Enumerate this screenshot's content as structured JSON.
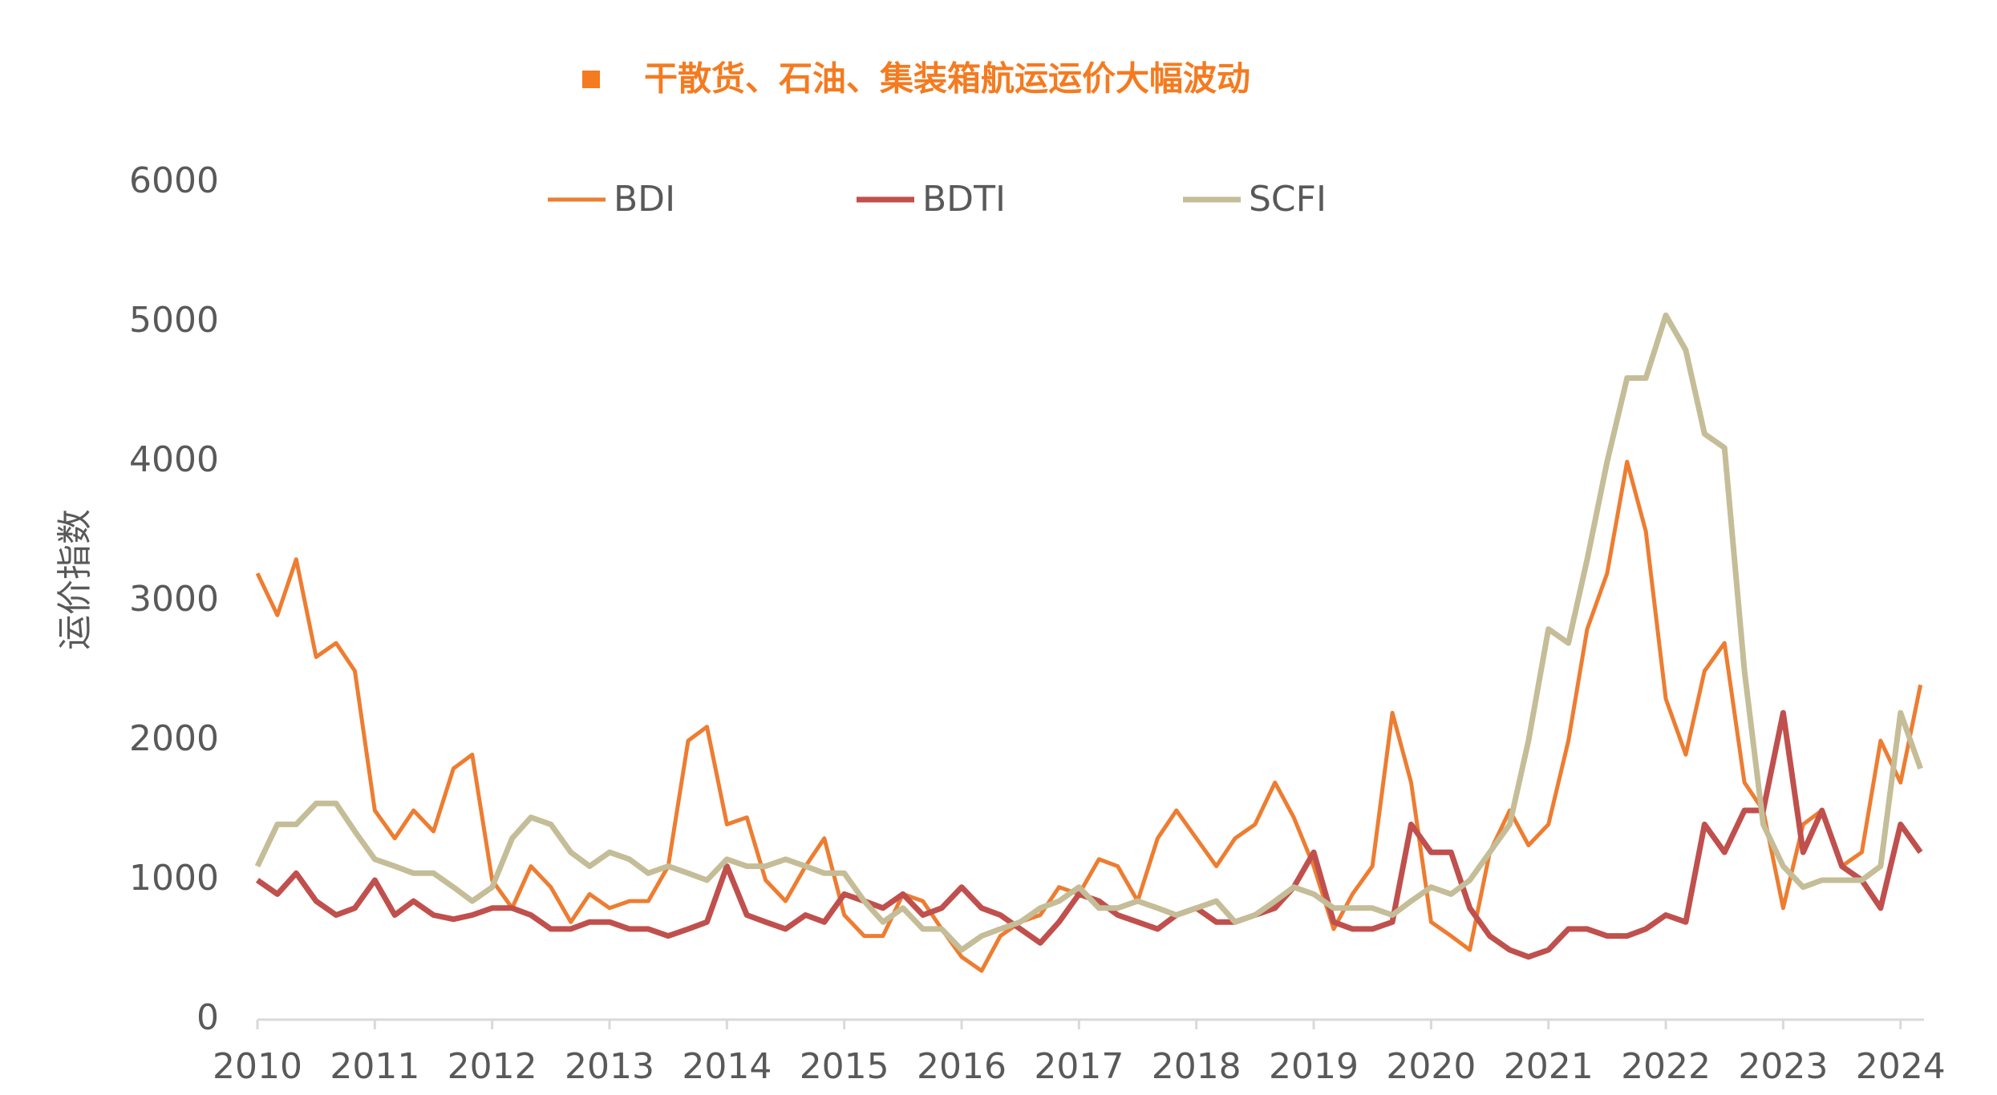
{
  "chart_data": {
    "type": "line",
    "title": "干散货、石油、集装箱航运运价大幅波动",
    "y_label": "运价指数",
    "xlim": [
      2010,
      2024.2
    ],
    "xticks": [
      2010,
      2011,
      2012,
      2013,
      2014,
      2015,
      2016,
      2017,
      2018,
      2019,
      2020,
      2021,
      2022,
      2023,
      2024
    ],
    "ylim": [
      0,
      6000
    ],
    "yticks": [
      0,
      1000,
      2000,
      3000,
      4000,
      5000,
      6000
    ],
    "grid": false,
    "legend": "top",
    "x": [
      2010,
      2010.17,
      2010.33,
      2010.5,
      2010.67,
      2010.83,
      2011,
      2011.17,
      2011.33,
      2011.5,
      2011.67,
      2011.83,
      2012,
      2012.17,
      2012.33,
      2012.5,
      2012.67,
      2012.83,
      2013,
      2013.17,
      2013.33,
      2013.5,
      2013.67,
      2013.83,
      2014,
      2014.17,
      2014.33,
      2014.5,
      2014.67,
      2014.83,
      2015,
      2015.17,
      2015.33,
      2015.5,
      2015.67,
      2015.83,
      2016,
      2016.17,
      2016.33,
      2016.5,
      2016.67,
      2016.83,
      2017,
      2017.17,
      2017.33,
      2017.5,
      2017.67,
      2017.83,
      2018,
      2018.17,
      2018.33,
      2018.5,
      2018.67,
      2018.83,
      2019,
      2019.17,
      2019.33,
      2019.5,
      2019.67,
      2019.83,
      2020,
      2020.17,
      2020.33,
      2020.5,
      2020.67,
      2020.83,
      2021,
      2021.17,
      2021.33,
      2021.5,
      2021.67,
      2021.83,
      2022,
      2022.17,
      2022.33,
      2022.5,
      2022.67,
      2022.83,
      2023,
      2023.17,
      2023.33,
      2023.5,
      2023.67,
      2023.83,
      2024,
      2024.17
    ],
    "series": [
      {
        "name": "BDI",
        "color": "#ED7D31",
        "width": 5,
        "values": [
          3200,
          2900,
          3300,
          2600,
          2700,
          2500,
          1500,
          1300,
          1500,
          1350,
          1800,
          1900,
          1000,
          800,
          1100,
          950,
          700,
          900,
          800,
          850,
          850,
          1100,
          2000,
          2100,
          1400,
          1450,
          1000,
          850,
          1100,
          1300,
          750,
          600,
          600,
          900,
          850,
          650,
          450,
          350,
          600,
          700,
          750,
          950,
          900,
          1150,
          1100,
          850,
          1300,
          1500,
          1300,
          1100,
          1300,
          1400,
          1700,
          1450,
          1100,
          650,
          900,
          1100,
          2200,
          1700,
          700,
          600,
          500,
          1200,
          1500,
          1250,
          1400,
          2000,
          2800,
          3200,
          4000,
          3500,
          2300,
          1900,
          2500,
          2700,
          1700,
          1500,
          800,
          1400,
          1500,
          1100,
          1200,
          2000,
          1700,
          2400
        ]
      },
      {
        "name": "BDTI",
        "color": "#C0504D",
        "width": 7,
        "values": [
          1000,
          900,
          1050,
          850,
          750,
          800,
          1000,
          750,
          850,
          750,
          720,
          750,
          800,
          800,
          750,
          650,
          650,
          700,
          700,
          650,
          650,
          600,
          650,
          700,
          1100,
          750,
          700,
          650,
          750,
          700,
          900,
          850,
          800,
          900,
          750,
          800,
          950,
          800,
          750,
          650,
          550,
          700,
          900,
          850,
          750,
          700,
          650,
          750,
          800,
          700,
          700,
          750,
          800,
          950,
          1200,
          700,
          650,
          650,
          700,
          1400,
          1200,
          1200,
          800,
          600,
          500,
          450,
          500,
          650,
          650,
          600,
          600,
          650,
          750,
          700,
          1400,
          1200,
          1500,
          1500,
          2200,
          1200,
          1500,
          1100,
          1000,
          800,
          1400,
          1200
        ]
      },
      {
        "name": "SCFI",
        "color": "#C4BD97",
        "width": 7,
        "values": [
          1100,
          1400,
          1400,
          1550,
          1550,
          1350,
          1150,
          1100,
          1050,
          1050,
          950,
          850,
          950,
          1300,
          1450,
          1400,
          1200,
          1100,
          1200,
          1150,
          1050,
          1100,
          1050,
          1000,
          1150,
          1100,
          1100,
          1150,
          1100,
          1050,
          1050,
          850,
          700,
          800,
          650,
          650,
          500,
          600,
          650,
          700,
          800,
          850,
          950,
          800,
          800,
          850,
          800,
          750,
          800,
          850,
          700,
          750,
          850,
          950,
          900,
          800,
          800,
          800,
          750,
          850,
          950,
          900,
          1000,
          1200,
          1400,
          2000,
          2800,
          2700,
          3300,
          4000,
          4600,
          4600,
          5050,
          4800,
          4200,
          4100,
          2500,
          1400,
          1100,
          950,
          1000,
          1000,
          1000,
          1100,
          2200,
          1800
        ]
      }
    ]
  }
}
